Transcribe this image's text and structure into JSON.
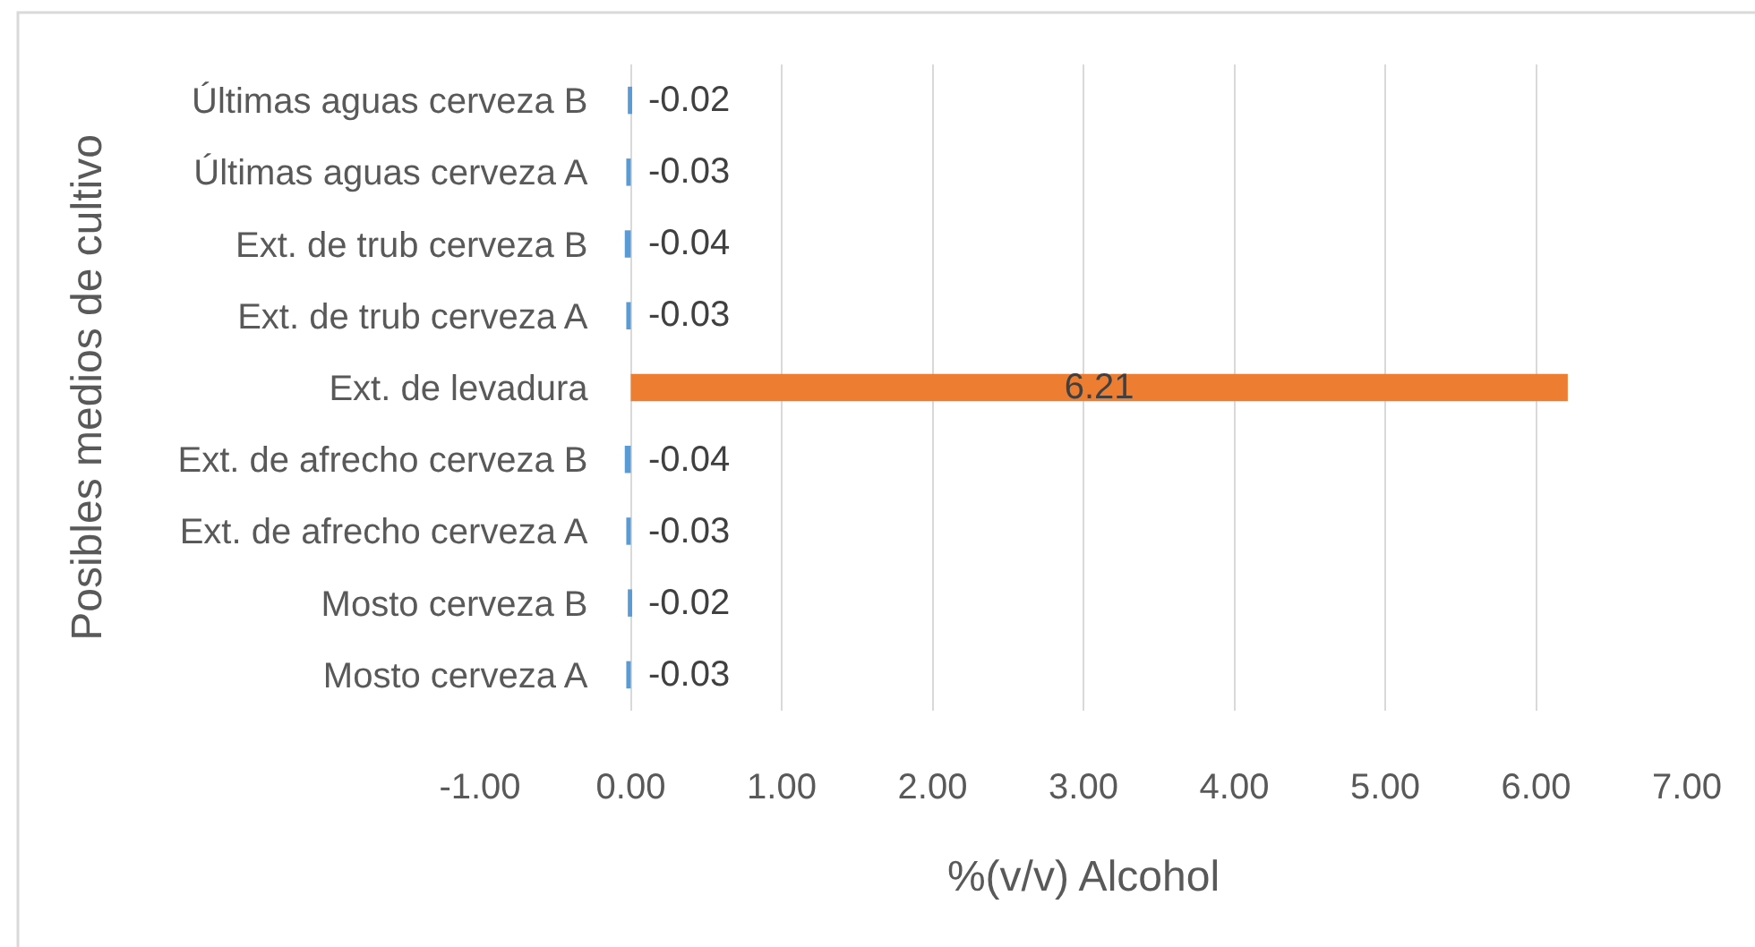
{
  "chart_data": {
    "type": "bar",
    "orientation": "horizontal",
    "xlabel": "%(v/v) Alcohol",
    "ylabel": "Posibles medios de cultivo",
    "categories": [
      "Últimas aguas cerveza B",
      "Últimas aguas cerveza A",
      "Ext. de trub cerveza B",
      "Ext. de trub cerveza A",
      "Ext. de levadura",
      "Ext. de afrecho cerveza B",
      "Ext. de afrecho cerveza A",
      "Mosto cerveza B",
      "Mosto cerveza A"
    ],
    "values": [
      -0.02,
      -0.03,
      -0.04,
      -0.03,
      6.21,
      -0.04,
      -0.03,
      -0.02,
      -0.03
    ],
    "colors": [
      "#5b9bd5",
      "#5b9bd5",
      "#5b9bd5",
      "#5b9bd5",
      "#ed7d31",
      "#5b9bd5",
      "#5b9bd5",
      "#5b9bd5",
      "#5b9bd5"
    ],
    "xlim": [
      -1,
      7
    ],
    "xticks": [
      {
        "value": -1,
        "label": "-1.00"
      },
      {
        "value": 0,
        "label": "0.00"
      },
      {
        "value": 1,
        "label": "1.00"
      },
      {
        "value": 2,
        "label": "2.00"
      },
      {
        "value": 3,
        "label": "3.00"
      },
      {
        "value": 4,
        "label": "4.00"
      },
      {
        "value": 5,
        "label": "5.00"
      },
      {
        "value": 6,
        "label": "6.00"
      },
      {
        "value": 7,
        "label": "7.00"
      }
    ],
    "grid": "x",
    "data_labels": true
  }
}
